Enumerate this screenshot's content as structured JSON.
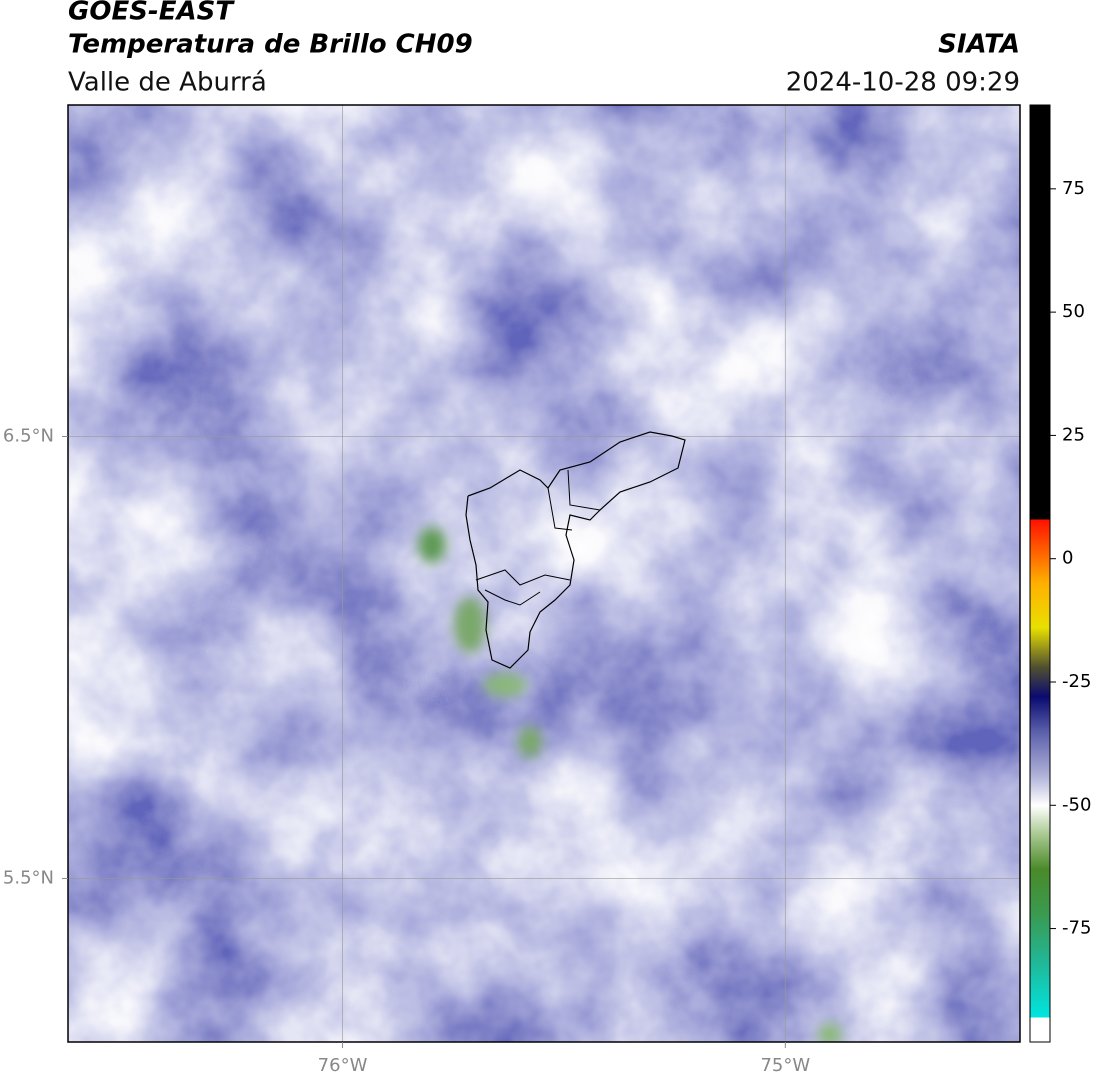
{
  "header": {
    "title": "GOES-EAST",
    "subtitle": "Temperatura de Brillo CH09",
    "region": "Valle de Aburrá",
    "source": "SIATA",
    "timestamp": "2024-10-28 09:29"
  },
  "map": {
    "xlim": [
      -76.62,
      -74.47
    ],
    "ylim": [
      5.13,
      7.25
    ],
    "xticks": [
      {
        "value": -76,
        "label": "76°W"
      },
      {
        "value": -75,
        "label": "75°W"
      }
    ],
    "yticks": [
      {
        "value": 6.5,
        "label": "6.5°N"
      },
      {
        "value": 5.5,
        "label": "5.5°N"
      }
    ],
    "grid": true
  },
  "colorbar": {
    "lim": [
      -98,
      92
    ],
    "ticks": [
      75,
      50,
      25,
      0,
      -25,
      -50,
      -75
    ],
    "stops": [
      {
        "value": -98,
        "color": "#ffffff"
      },
      {
        "value": -93,
        "color": "#ffffff"
      },
      {
        "value": -93,
        "color": "#00e5e0"
      },
      {
        "value": -82,
        "color": "#20b898"
      },
      {
        "value": -72,
        "color": "#3a9a50"
      },
      {
        "value": -63,
        "color": "#4a8a2a"
      },
      {
        "value": -56,
        "color": "#a8c890"
      },
      {
        "value": -50,
        "color": "#ffffff"
      },
      {
        "value": -44,
        "color": "#b0b2d8"
      },
      {
        "value": -35,
        "color": "#5a5eaa"
      },
      {
        "value": -28,
        "color": "#0a0a70"
      },
      {
        "value": -22,
        "color": "#505030"
      },
      {
        "value": -14,
        "color": "#e8e000"
      },
      {
        "value": -5,
        "color": "#ffb000"
      },
      {
        "value": 8,
        "color": "#ff1000"
      },
      {
        "value": 8,
        "color": "#000000"
      },
      {
        "value": 92,
        "color": "#000000"
      }
    ]
  }
}
